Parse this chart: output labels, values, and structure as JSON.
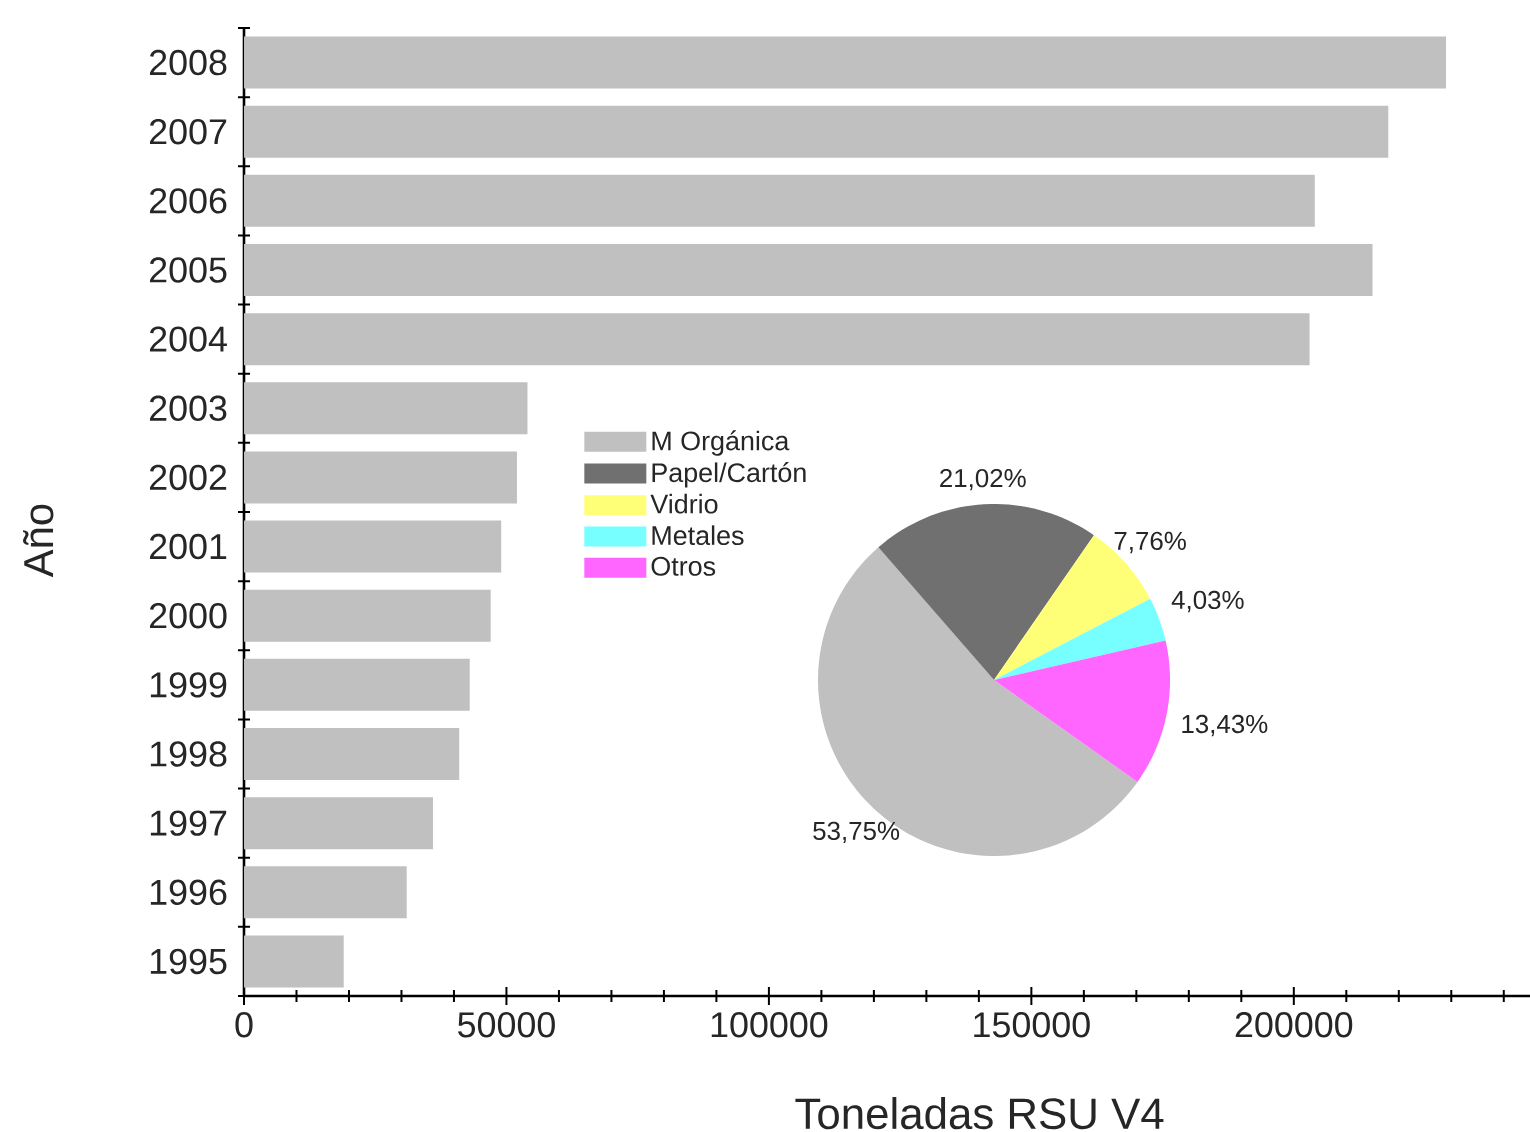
{
  "chart_data": [
    {
      "type": "bar",
      "orientation": "horizontal",
      "categories": [
        "2008",
        "2007",
        "2006",
        "2005",
        "2004",
        "2003",
        "2002",
        "2001",
        "2000",
        "1999",
        "1998",
        "1997",
        "1996",
        "1995"
      ],
      "values": [
        229000,
        218000,
        204000,
        215000,
        203000,
        54000,
        52000,
        49000,
        47000,
        43000,
        41000,
        36000,
        31000,
        19000
      ],
      "color": "#c0c0c0",
      "xlim": [
        0,
        245000
      ],
      "xticks": [
        0,
        {
          "value": 10000,
          "label": null
        },
        {
          "value": 20000,
          "label": null
        },
        {
          "value": 30000,
          "label": null
        },
        {
          "value": 40000,
          "label": null
        },
        50000,
        {
          "value": 60000,
          "label": null
        },
        {
          "value": 70000,
          "label": null
        },
        {
          "value": 80000,
          "label": null
        },
        {
          "value": 90000,
          "label": null
        },
        100000,
        {
          "value": 110000,
          "label": null
        },
        {
          "value": 120000,
          "label": null
        },
        {
          "value": 130000,
          "label": null
        },
        {
          "value": 140000,
          "label": null
        },
        150000,
        {
          "value": 160000,
          "label": null
        },
        {
          "value": 170000,
          "label": null
        },
        {
          "value": 180000,
          "label": null
        },
        {
          "value": 190000,
          "label": null
        },
        200000,
        {
          "value": 210000,
          "label": null
        },
        {
          "value": 220000,
          "label": null
        },
        {
          "value": 230000,
          "label": null
        },
        {
          "value": 240000,
          "label": null
        }
      ],
      "xlabel": "Toneladas RSU V4",
      "ylabel": "Año"
    },
    {
      "type": "pie",
      "categories": [
        "M Orgánica",
        "Papel/Cartón",
        "Vidrio",
        "Metales",
        "Otros"
      ],
      "values": [
        53.75,
        21.02,
        7.76,
        4.03,
        13.43
      ],
      "colors": [
        "#c0c0c0",
        "#707070",
        "#ffff77",
        "#77ffff",
        "#ff66ff"
      ],
      "value_labels": [
        "53,75%",
        "21,02%",
        "7,76%",
        "4,03%",
        "13,43%"
      ],
      "legend": "top left"
    }
  ]
}
